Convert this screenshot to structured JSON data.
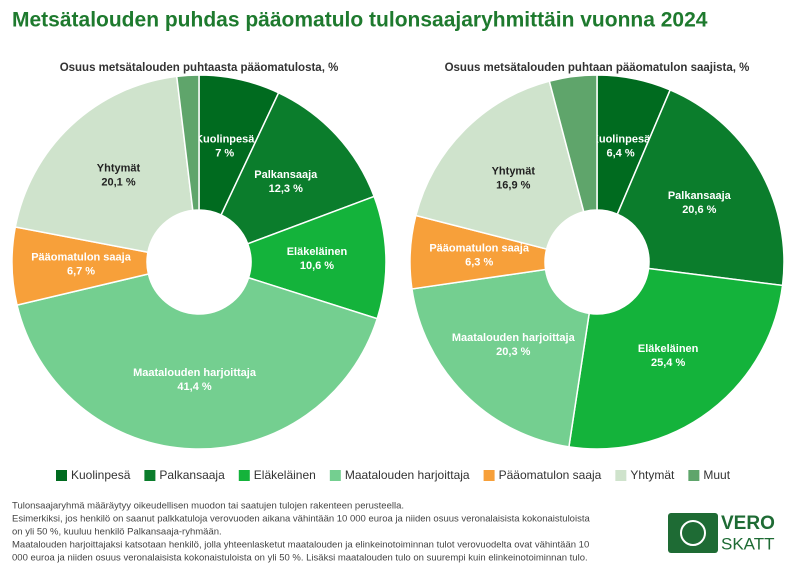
{
  "title": "Metsätalouden puhdas pääomatulo tulonsaajaryhmittäin vuonna 2024",
  "chart_data": [
    {
      "type": "donut",
      "title": "Osuus metsätalouden puhtaasta pääomatulosta, %",
      "categories": [
        "Kuolinpesä",
        "Palkansaaja",
        "Eläkeläinen",
        "Maatalouden harjoittaja",
        "Pääomatulon saaja",
        "Yhtymät",
        "Muut"
      ],
      "values": [
        7,
        12.3,
        10.6,
        41.4,
        6.7,
        20.1,
        1.9
      ],
      "value_labels": [
        "7 %",
        "12,3 %",
        "10,6 %",
        "41,4 %",
        "6,7 %",
        "20,1 %",
        null
      ],
      "colors": [
        "#006b1f",
        "#0b7d2c",
        "#14b33b",
        "#74cf90",
        "#f7a03a",
        "#cfe3cc",
        "#5fa56b"
      ]
    },
    {
      "type": "donut",
      "title": "Osuus metsätalouden puhtaan pääomatulon saajista, %",
      "categories": [
        "Kuolinpesä",
        "Palkansaaja",
        "Eläkeläinen",
        "Maatalouden harjoittaja",
        "Pääomatulon saaja",
        "Yhtymät",
        "Muut"
      ],
      "values": [
        6.4,
        20.6,
        25.4,
        20.3,
        6.3,
        16.9,
        4.1
      ],
      "value_labels": [
        "6,4 %",
        "20,6 %",
        "25,4 %",
        "20,3 %",
        "6,3 %",
        "16,9 %",
        null
      ],
      "colors": [
        "#006b1f",
        "#0b7d2c",
        "#14b33b",
        "#74cf90",
        "#f7a03a",
        "#cfe3cc",
        "#5fa56b"
      ]
    }
  ],
  "footnotes": [
    "Tulonsaajaryhmä määräytyy oikeudellisen muodon tai saatujen tulojen rakenteen perusteella.",
    "Esimerkiksi, jos henkilö on saanut palkkatuloja verovuoden aikana vähintään 10 000 euroa ja niiden osuus veronalaisista kokonaistuloista",
    "on yli 50 %, kuuluu henkilö Palkansaaja-ryhmään.",
    "Maatalouden harjoittajaksi katsotaan henkilö, jolla yhteenlasketut maatalouden ja elinkeinotoiminnan tulot verovuodelta ovat vähintään 10",
    "000 euroa ja niiden osuus veronalaisista kokonaistuloista on yli 50 %. Lisäksi maatalouden tulo on suurempi kuin elinkeinotoiminnan tulo."
  ],
  "logo": [
    "VERO",
    "SKATT"
  ]
}
